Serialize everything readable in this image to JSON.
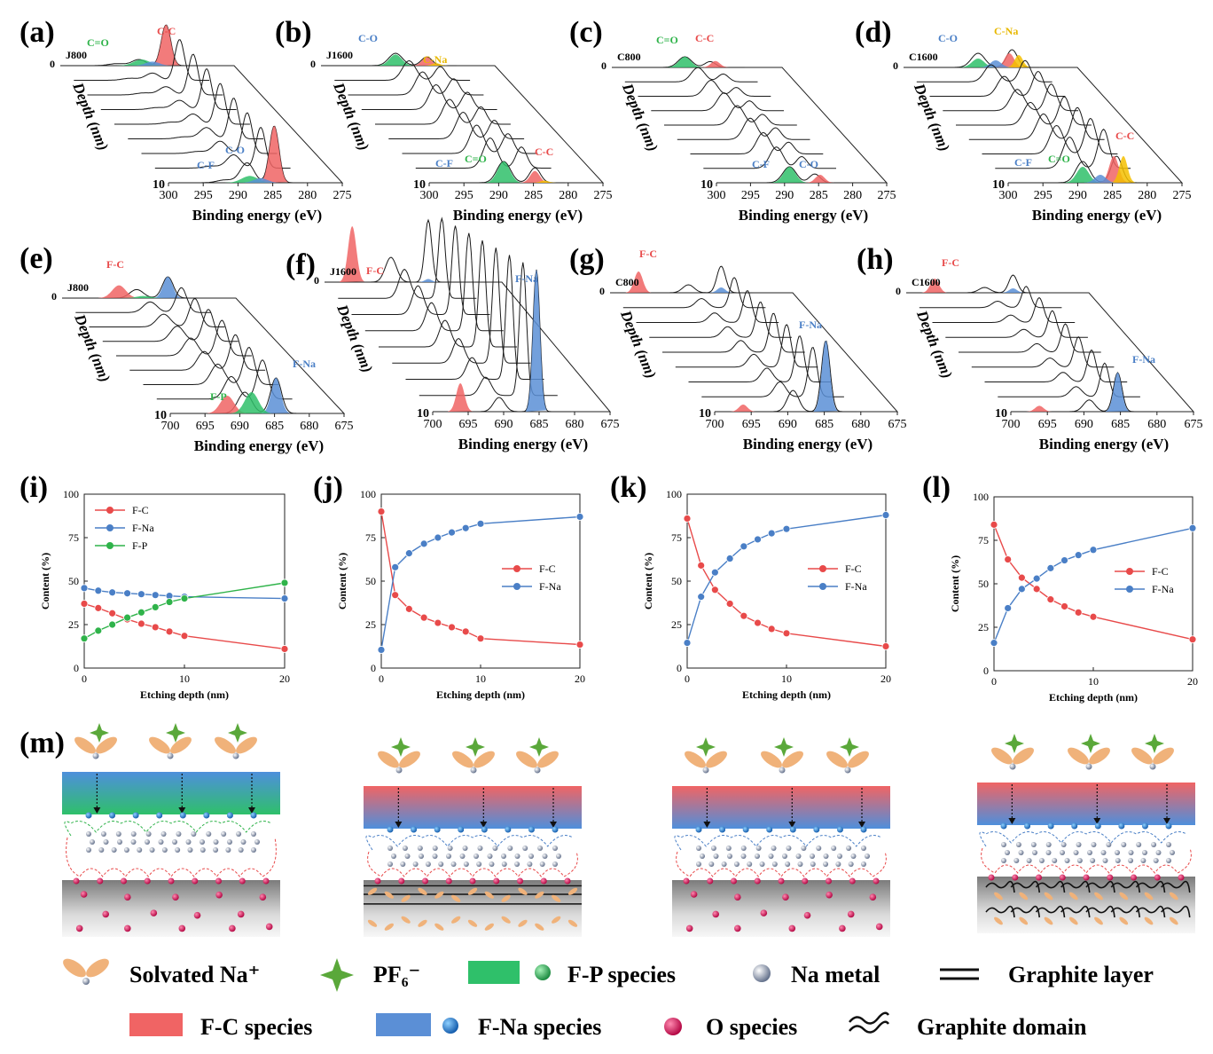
{
  "figure": {
    "xps_c1s": [
      {
        "letter": "(a)",
        "sample": "J800",
        "labels": [
          {
            "text": "C=O",
            "color": "#2fb34a"
          },
          {
            "text": "C-C",
            "color": "#e84a4a"
          },
          {
            "text": "C-O",
            "color": "#4a7fc6"
          },
          {
            "text": "C-F",
            "color": "#4a7fc6"
          }
        ]
      },
      {
        "letter": "(b)",
        "sample": "J1600",
        "labels": [
          {
            "text": "C-O",
            "color": "#4a7fc6"
          },
          {
            "text": "C-Na",
            "color": "#e8b800"
          },
          {
            "text": "C-F",
            "color": "#4a7fc6"
          },
          {
            "text": "C=O",
            "color": "#2fb34a"
          },
          {
            "text": "C-C",
            "color": "#e84a4a"
          }
        ]
      },
      {
        "letter": "(c)",
        "sample": "C800",
        "labels": [
          {
            "text": "C=O",
            "color": "#2fb34a"
          },
          {
            "text": "C-C",
            "color": "#e84a4a"
          },
          {
            "text": "C-F",
            "color": "#4a7fc6"
          },
          {
            "text": "C-O",
            "color": "#4a7fc6"
          }
        ]
      },
      {
        "letter": "(d)",
        "sample": "C1600",
        "labels": [
          {
            "text": "C-O",
            "color": "#4a7fc6"
          },
          {
            "text": "C-Na",
            "color": "#e8b800"
          },
          {
            "text": "C-F",
            "color": "#4a7fc6"
          },
          {
            "text": "C=O",
            "color": "#2fb34a"
          },
          {
            "text": "C-C",
            "color": "#e84a4a"
          }
        ]
      }
    ],
    "xps_f1s": [
      {
        "letter": "(e)",
        "sample": "J800",
        "labels": [
          {
            "text": "F-C",
            "color": "#e84a4a"
          },
          {
            "text": "F-Na",
            "color": "#4a7fc6"
          },
          {
            "text": "F-P",
            "color": "#2fb34a"
          }
        ]
      },
      {
        "letter": "(f)",
        "sample": "J1600",
        "labels": [
          {
            "text": "F-C",
            "color": "#e84a4a"
          },
          {
            "text": "F-Na",
            "color": "#4a7fc6"
          }
        ]
      },
      {
        "letter": "(g)",
        "sample": "C800",
        "labels": [
          {
            "text": "F-C",
            "color": "#e84a4a"
          },
          {
            "text": "F-Na",
            "color": "#4a7fc6"
          }
        ]
      },
      {
        "letter": "(h)",
        "sample": "C1600",
        "labels": [
          {
            "text": "F-C",
            "color": "#e84a4a"
          },
          {
            "text": "F-Na",
            "color": "#4a7fc6"
          }
        ]
      }
    ],
    "xps_axis": {
      "xlabel": "Binding energy (eV)",
      "depth_label": "Depth (nm)",
      "depth_start": "0",
      "depth_end": "10",
      "c1s_ticks": [
        "300",
        "295",
        "290",
        "285",
        "280",
        "275"
      ],
      "f1s_ticks": [
        "700",
        "695",
        "690",
        "685",
        "680",
        "675"
      ]
    },
    "m_letter": "(m)",
    "schematic_colors": {
      "fc": "#f06464",
      "fna": "#5b8fd6",
      "fp": "#2fc06a",
      "na_metal": "#8a94a8",
      "o": "#d6145a",
      "solvent": "#f0b27a",
      "pf6": "#5aa83a"
    },
    "legend": {
      "row1": [
        "Solvated Na⁺",
        "PF₆⁻",
        "F-P species",
        "Na metal",
        "Graphite layer"
      ],
      "row2": [
        "F-C species",
        "F-Na species",
        "O species",
        "Graphite domain"
      ]
    }
  },
  "chart_data": [
    {
      "panel": "(i)",
      "type": "line",
      "xlabel": "Etching depth (nm)",
      "ylabel": "Content (%)",
      "xlim": [
        0,
        20
      ],
      "ylim": [
        0,
        100
      ],
      "xticks": [
        "0",
        "10",
        "20"
      ],
      "yticks": [
        "0",
        "25",
        "50",
        "75",
        "100"
      ],
      "legend_position": "top-left",
      "x": [
        0,
        1.4,
        2.8,
        4.3,
        5.7,
        7.1,
        8.5,
        10,
        20
      ],
      "series": [
        {
          "name": "F-C",
          "color": "#e84a4a",
          "values": [
            37,
            34.5,
            31.5,
            28,
            25.5,
            23.5,
            21,
            18.5,
            11
          ]
        },
        {
          "name": "F-Na",
          "color": "#4a7fc6",
          "values": [
            46,
            44.5,
            43.5,
            43,
            42.5,
            42,
            41.5,
            41,
            40
          ]
        },
        {
          "name": "F-P",
          "color": "#2fb34a",
          "values": [
            17,
            21.5,
            25,
            29,
            32,
            35,
            38,
            40,
            49
          ]
        }
      ]
    },
    {
      "panel": "(j)",
      "type": "line",
      "xlabel": "Etching depth (nm)",
      "ylabel": "Content (%)",
      "xlim": [
        0,
        20
      ],
      "ylim": [
        0,
        100
      ],
      "xticks": [
        "0",
        "10",
        "20"
      ],
      "yticks": [
        "0",
        "25",
        "50",
        "75",
        "100"
      ],
      "legend_position": "center-right",
      "x": [
        0,
        1.4,
        2.8,
        4.3,
        5.7,
        7.1,
        8.5,
        10,
        20
      ],
      "series": [
        {
          "name": "F-C",
          "color": "#e84a4a",
          "values": [
            90,
            42,
            34,
            29,
            26,
            23.5,
            21,
            17,
            13.5
          ]
        },
        {
          "name": "F-Na",
          "color": "#4a7fc6",
          "values": [
            10.5,
            58,
            66,
            71.5,
            75,
            78,
            80.5,
            83,
            87
          ]
        }
      ]
    },
    {
      "panel": "(k)",
      "type": "line",
      "xlabel": "Etching depth (nm)",
      "ylabel": "Content (%)",
      "xlim": [
        0,
        20
      ],
      "ylim": [
        0,
        100
      ],
      "xticks": [
        "0",
        "10",
        "20"
      ],
      "yticks": [
        "0",
        "25",
        "50",
        "75",
        "100"
      ],
      "legend_position": "center-right",
      "x": [
        0,
        1.4,
        2.8,
        4.3,
        5.7,
        7.1,
        8.5,
        10,
        20
      ],
      "series": [
        {
          "name": "F-C",
          "color": "#e84a4a",
          "values": [
            86,
            59,
            45,
            37,
            30,
            26,
            22.5,
            20,
            12.5
          ]
        },
        {
          "name": "F-Na",
          "color": "#4a7fc6",
          "values": [
            14.5,
            41,
            55,
            63,
            70,
            74,
            77.5,
            80,
            88
          ]
        }
      ]
    },
    {
      "panel": "(l)",
      "type": "line",
      "xlabel": "Etching depth (nm)",
      "ylabel": "Content (%)",
      "xlim": [
        0,
        20
      ],
      "ylim": [
        0,
        100
      ],
      "xticks": [
        "0",
        "10",
        "20"
      ],
      "yticks": [
        "0",
        "25",
        "50",
        "75",
        "100"
      ],
      "legend_position": "center-right",
      "x": [
        0,
        1.4,
        2.8,
        4.3,
        5.7,
        7.1,
        8.5,
        10,
        20
      ],
      "series": [
        {
          "name": "F-C",
          "color": "#e84a4a",
          "values": [
            84,
            64,
            53.5,
            47,
            41,
            37,
            33.5,
            31,
            18
          ]
        },
        {
          "name": "F-Na",
          "color": "#4a7fc6",
          "values": [
            16,
            36,
            47,
            53,
            59,
            63.5,
            66.5,
            69.5,
            82
          ]
        }
      ]
    }
  ]
}
